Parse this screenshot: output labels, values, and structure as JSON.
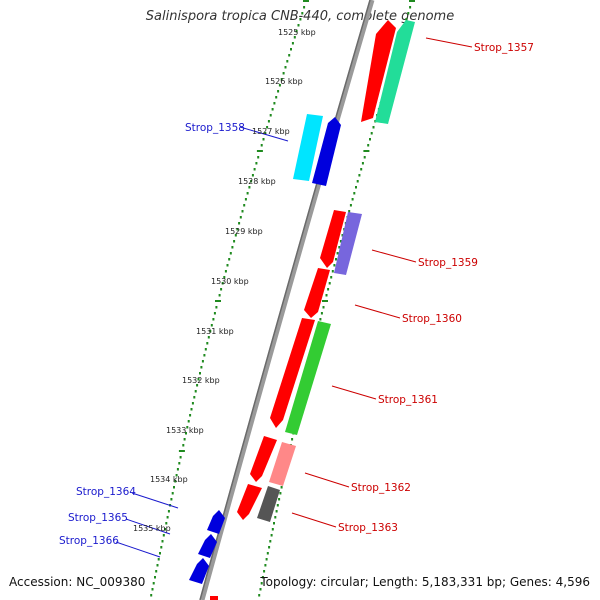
{
  "title": "Salinispora tropica CNB-440, complete genome",
  "accession": "Accession: NC_009380",
  "topology": "Topology: circular; Length: 5,183,331 bp; Genes: 4,596",
  "ticks": [
    "1525 kbp",
    "1526 kbp",
    "1527 kbp",
    "1528 kbp",
    "1529 kbp",
    "1530 kbp",
    "1531 kbp",
    "1532 kbp",
    "1533 kbp",
    "1534 kbp",
    "1535 kbp"
  ],
  "left_labels": [
    {
      "name": "Strop_1358",
      "color": "#1a1acd"
    },
    {
      "name": "Strop_1364",
      "color": "#1a1acd"
    },
    {
      "name": "Strop_1365",
      "color": "#1a1acd"
    },
    {
      "name": "Strop_1366",
      "color": "#1a1acd"
    }
  ],
  "right_labels": [
    {
      "name": "Strop_1357",
      "color": "#cc0000"
    },
    {
      "name": "Strop_1359",
      "color": "#cc0000"
    },
    {
      "name": "Strop_1360",
      "color": "#cc0000"
    },
    {
      "name": "Strop_1361",
      "color": "#cc0000"
    },
    {
      "name": "Strop_1362",
      "color": "#cc0000"
    },
    {
      "name": "Strop_1363",
      "color": "#cc0000"
    }
  ],
  "colors": {
    "backbone": "#808080",
    "tick": "#1f8a1f",
    "forward_gene": "#ff0000",
    "reverse_gene_blue": "#0000dd",
    "cyan_gene": "#00e5ff",
    "green_gene": "#33cc33",
    "mint_gene": "#22dd99",
    "purple_gene": "#7766dd",
    "pink_gene": "#ff8888",
    "gray_gene": "#555555"
  }
}
